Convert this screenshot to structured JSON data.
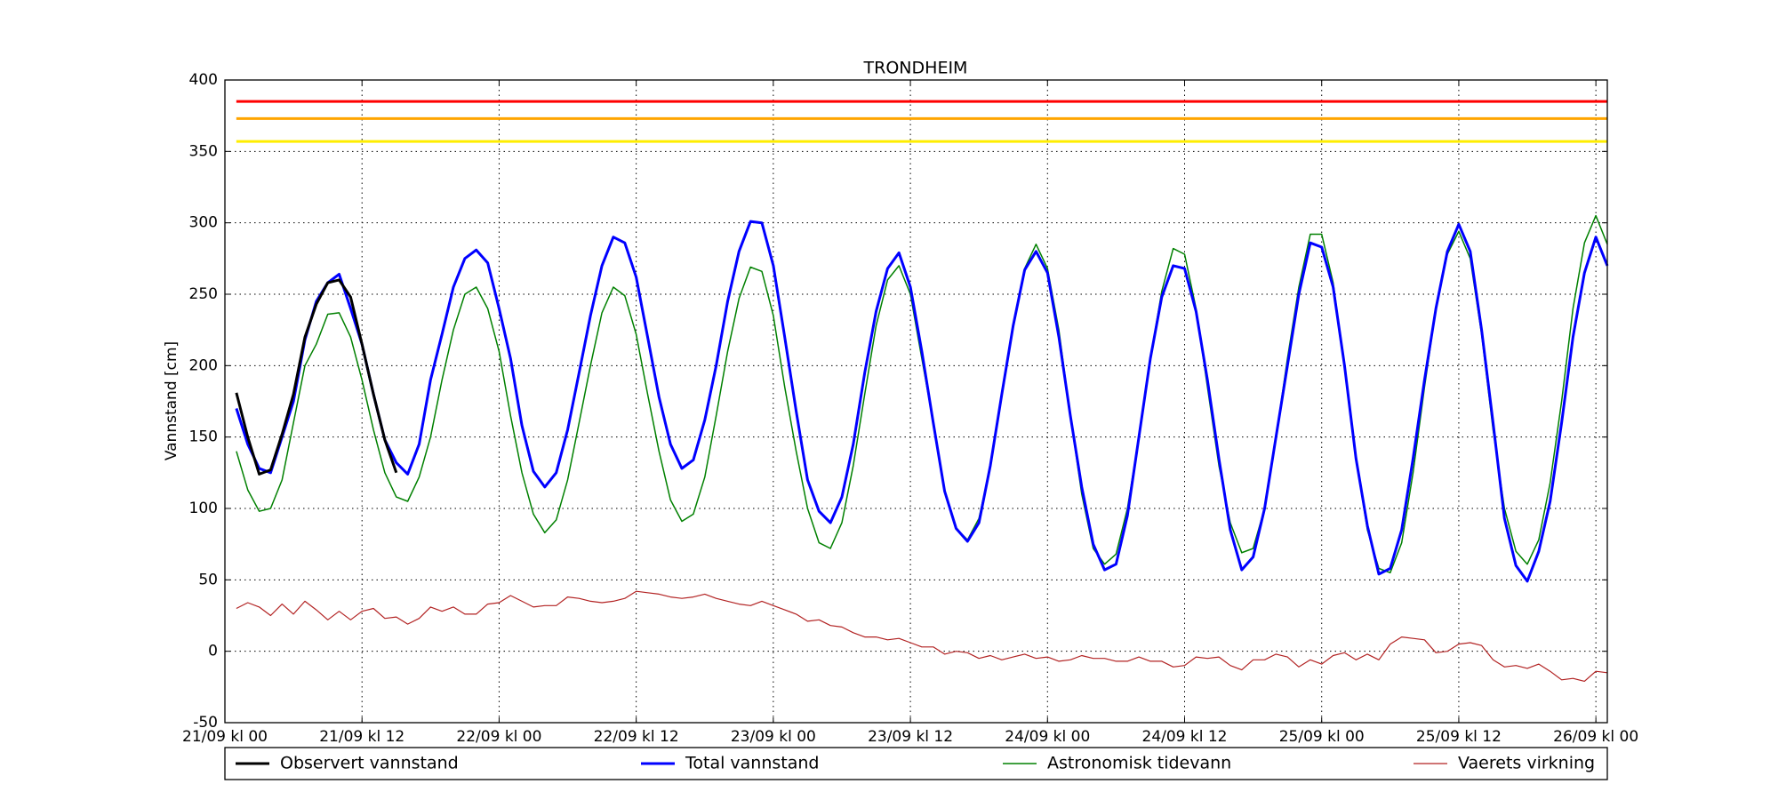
{
  "chart_data": {
    "type": "line",
    "title": "TRONDHEIM",
    "y_label": "Vannstand [cm]",
    "x": [
      1,
      2,
      3,
      4,
      5,
      6,
      7,
      8,
      9,
      10,
      11,
      12,
      13,
      14,
      15,
      16,
      17,
      18,
      19,
      20,
      21,
      22,
      23,
      24,
      25,
      26,
      27,
      28,
      29,
      30,
      31,
      32,
      33,
      34,
      35,
      36,
      37,
      38,
      39,
      40,
      41,
      42,
      43,
      44,
      45,
      46,
      47,
      48,
      49,
      50,
      51,
      52,
      53,
      54,
      55,
      56,
      57,
      58,
      59,
      60,
      61,
      62,
      63,
      64,
      65,
      66,
      67,
      68,
      69,
      70,
      71,
      72,
      73,
      74,
      75,
      76,
      77,
      78,
      79,
      80,
      81,
      82,
      83,
      84,
      85,
      86,
      87,
      88,
      89,
      90,
      91,
      92,
      93,
      94,
      95,
      96,
      97,
      98,
      99,
      100,
      101,
      102,
      103,
      104,
      105,
      106,
      107,
      108,
      109,
      110,
      111,
      112,
      113,
      114,
      115,
      116,
      117,
      118,
      119,
      120,
      121
    ],
    "series": [
      {
        "name": "Observert vannstand",
        "color": "#000000",
        "x": [
          1,
          2,
          3,
          4,
          5,
          6,
          7,
          8,
          9,
          10,
          11,
          12,
          13,
          14,
          15
        ],
        "values": [
          181,
          150,
          124,
          127,
          152,
          180,
          220,
          243,
          258,
          260,
          248,
          215,
          180,
          148,
          125
        ]
      },
      {
        "name": "Total vannstand",
        "color": "#0000ff",
        "values": [
          170,
          145,
          128,
          125,
          150,
          175,
          218,
          245,
          258,
          264,
          240,
          215,
          180,
          148,
          132,
          124,
          145,
          190,
          222,
          255,
          275,
          281,
          272,
          240,
          205,
          158,
          126,
          115,
          125,
          155,
          195,
          235,
          270,
          290,
          286,
          262,
          220,
          178,
          145,
          128,
          134,
          162,
          200,
          245,
          280,
          301,
          300,
          270,
          220,
          168,
          120,
          98,
          90,
          108,
          145,
          195,
          238,
          268,
          279,
          255,
          210,
          160,
          112,
          86,
          77,
          90,
          130,
          180,
          228,
          267,
          280,
          265,
          220,
          165,
          115,
          75,
          57,
          61,
          95,
          150,
          205,
          248,
          270,
          268,
          238,
          190,
          135,
          85,
          57,
          66,
          100,
          150,
          200,
          250,
          286,
          283,
          255,
          200,
          135,
          88,
          54,
          58,
          85,
          135,
          190,
          240,
          280,
          299,
          280,
          225,
          160,
          93,
          60,
          49,
          70,
          105,
          160,
          220,
          265,
          290,
          270
        ]
      },
      {
        "name": "Astronomisk tidevann",
        "color": "#008000",
        "values": [
          140,
          113,
          98,
          100,
          120,
          160,
          200,
          215,
          236,
          237,
          220,
          190,
          155,
          125,
          108,
          105,
          122,
          150,
          190,
          225,
          250,
          255,
          240,
          210,
          165,
          125,
          96,
          83,
          92,
          120,
          160,
          200,
          237,
          255,
          249,
          222,
          180,
          140,
          106,
          91,
          96,
          122,
          165,
          210,
          247,
          269,
          266,
          235,
          185,
          140,
          100,
          76,
          72,
          90,
          130,
          180,
          228,
          260,
          270,
          250,
          205,
          160,
          113,
          86,
          78,
          93,
          130,
          180,
          228,
          268,
          285,
          268,
          225,
          165,
          110,
          72,
          61,
          68,
          100,
          150,
          205,
          252,
          282,
          278,
          240,
          185,
          130,
          90,
          69,
          72,
          100,
          150,
          205,
          255,
          292,
          292,
          258,
          200,
          135,
          85,
          58,
          55,
          76,
          125,
          185,
          240,
          278,
          294,
          275,
          222,
          155,
          100,
          70,
          61,
          78,
          118,
          175,
          240,
          286,
          305,
          285
        ]
      },
      {
        "name": "Vaerets virkning",
        "color": "#b22222",
        "values": [
          30,
          34,
          31,
          25,
          33,
          26,
          35,
          29,
          22,
          28,
          22,
          28,
          30,
          23,
          24,
          19,
          23,
          31,
          28,
          31,
          26,
          26,
          33,
          34,
          39,
          35,
          31,
          32,
          32,
          38,
          37,
          35,
          34,
          35,
          37,
          42,
          41,
          40,
          38,
          37,
          38,
          40,
          37,
          35,
          33,
          32,
          35,
          32,
          29,
          26,
          21,
          22,
          18,
          17,
          13,
          10,
          10,
          8,
          9,
          6,
          3,
          3,
          -2,
          0,
          -1,
          -5,
          -3,
          -6,
          -4,
          -2,
          -5,
          -4,
          -7,
          -6,
          -3,
          -5,
          -5,
          -7,
          -7,
          -4,
          -7,
          -7,
          -11,
          -10,
          -4,
          -5,
          -4,
          -10,
          -13,
          -6,
          -6,
          -2,
          -4,
          -11,
          -6,
          -9,
          -3,
          -1,
          -6,
          -2,
          -6,
          5,
          10,
          9,
          8,
          -1,
          0,
          5,
          6,
          4,
          -6,
          -11,
          -10,
          -12,
          -9,
          -14,
          -20,
          -19,
          -21,
          -14,
          -15
        ]
      }
    ],
    "reference_lines": [
      {
        "value": 385,
        "color": "#ff0000"
      },
      {
        "value": 373,
        "color": "#ffa500"
      },
      {
        "value": 357,
        "color": "#ffee00"
      }
    ],
    "xlim": [
      0,
      121
    ],
    "xticks": [
      {
        "value": 0,
        "label": "21/09 kl 00"
      },
      {
        "value": 12,
        "label": "21/09 kl 12"
      },
      {
        "value": 24,
        "label": "22/09 kl 00"
      },
      {
        "value": 36,
        "label": "22/09 kl 12"
      },
      {
        "value": 48,
        "label": "23/09 kl 00"
      },
      {
        "value": 60,
        "label": "23/09 kl 12"
      },
      {
        "value": 72,
        "label": "24/09 kl 00"
      },
      {
        "value": 84,
        "label": "24/09 kl 12"
      },
      {
        "value": 96,
        "label": "25/09 kl 00"
      },
      {
        "value": 108,
        "label": "25/09 kl 12"
      },
      {
        "value": 120,
        "label": "26/09 kl 00"
      }
    ],
    "ylim": [
      -50,
      400
    ],
    "yticks": [
      -50,
      0,
      50,
      100,
      150,
      200,
      250,
      300,
      350,
      400
    ],
    "grid": true,
    "legend": "below"
  }
}
